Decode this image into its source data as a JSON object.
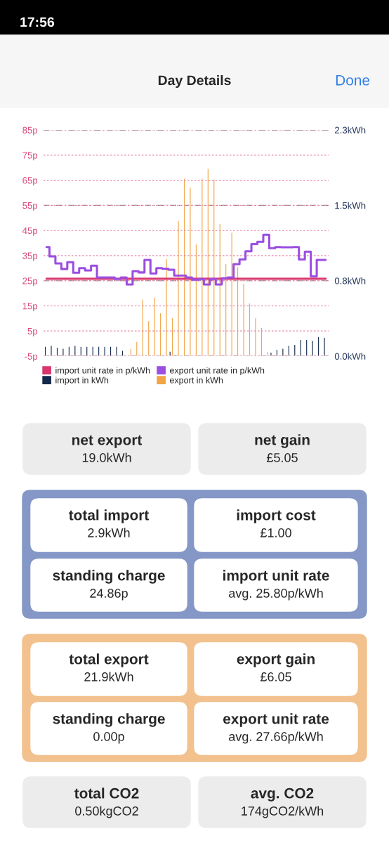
{
  "chart_data": [
    {
      "type": "bar",
      "title": "Day Details",
      "annotations": [
        "17:56",
        "Done"
      ],
      "categories": [
        null,
        null,
        null,
        null,
        null,
        null,
        null,
        null,
        null,
        null,
        null,
        null,
        null,
        null,
        null,
        null,
        null,
        null,
        null,
        null,
        null,
        null,
        null,
        null,
        null,
        null,
        null,
        null,
        null,
        null,
        null,
        null,
        null,
        null,
        null,
        null,
        null,
        null,
        null,
        null,
        null,
        null,
        null,
        null,
        null,
        null,
        null,
        null
      ],
      "ylim": [
        -5,
        85
      ],
      "yticks": [
        {
          "value": -5,
          "label": "-5p"
        },
        {
          "value": 5,
          "label": "5p"
        },
        {
          "value": 15,
          "label": "15p"
        },
        {
          "value": 25,
          "label": "25p"
        },
        {
          "value": 35,
          "label": "35p"
        },
        {
          "value": 45,
          "label": "45p"
        },
        {
          "value": 55,
          "label": "55p"
        },
        {
          "value": 65,
          "label": "65p"
        },
        {
          "value": 75,
          "label": "75p"
        },
        {
          "value": 85,
          "label": "85p"
        }
      ],
      "y2lim": [
        0,
        2.3
      ],
      "y2ticks": [
        {
          "value": 0,
          "label": "0.0kWh"
        },
        {
          "value": 0.767,
          "label": "0.8kWh"
        },
        {
          "value": 1.533,
          "label": "1.5kWh"
        },
        {
          "value": 2.3,
          "label": "2.3kWh"
        }
      ],
      "grid": true,
      "legend": "bottom",
      "series": [
        {
          "name": "import unit rate in p/kWh",
          "type": "step",
          "axis": "y",
          "color": "#d9366e",
          "values": [
            25.8,
            25.8,
            25.8,
            25.8,
            25.8,
            25.8,
            25.8,
            25.8,
            25.8,
            25.8,
            25.8,
            25.8,
            25.8,
            25.8,
            25.8,
            25.8,
            25.8,
            25.8,
            25.8,
            25.8,
            25.8,
            25.8,
            25.8,
            25.8,
            25.8,
            25.8,
            25.8,
            25.8,
            25.8,
            25.8,
            25.8,
            25.8,
            25.8,
            25.8,
            25.8,
            25.8,
            25.8,
            25.8,
            25.8,
            25.8,
            25.8,
            25.8,
            25.8,
            25.8,
            25.8,
            25.8,
            25.8,
            25.8
          ]
        },
        {
          "name": "export unit rate in p/kWh",
          "type": "step",
          "axis": "y",
          "color": "#9b4ee0",
          "values": [
            38.4,
            34.7,
            31.9,
            29.7,
            32.4,
            28.2,
            30.0,
            29.1,
            31.0,
            26.3,
            26.3,
            26.3,
            25.7,
            26.3,
            23.5,
            28.8,
            28.3,
            33.3,
            27.9,
            30.0,
            29.8,
            29.4,
            27.1,
            27.1,
            26.3,
            25.4,
            25.7,
            23.5,
            25.7,
            23.5,
            26.0,
            26.3,
            31.6,
            33.5,
            36.7,
            39.6,
            40.5,
            43.3,
            38.0,
            38.4,
            38.3,
            38.3,
            38.4,
            33.5,
            36.6,
            26.8,
            33.3,
            33.3
          ]
        },
        {
          "name": "import in kWh",
          "axis": "y2",
          "color": "#13294b",
          "values": [
            0.1,
            0.11,
            0.09,
            0.08,
            0.1,
            0.11,
            0.1,
            0.1,
            0.1,
            0.1,
            0.1,
            0.1,
            0.1,
            0.06,
            null,
            null,
            null,
            null,
            null,
            null,
            null,
            0.05,
            0.02,
            null,
            null,
            null,
            null,
            null,
            null,
            null,
            null,
            null,
            null,
            null,
            null,
            null,
            null,
            null,
            0.04,
            0.07,
            0.08,
            0.11,
            0.12,
            0.17,
            0.17,
            0.16,
            0.2,
            0.19
          ]
        },
        {
          "name": "export in kWh",
          "axis": "y2",
          "color": "#f2a446",
          "values": [
            null,
            null,
            null,
            null,
            null,
            null,
            null,
            null,
            null,
            null,
            null,
            null,
            null,
            null,
            0.08,
            0.15,
            0.58,
            0.36,
            0.6,
            0.44,
            0.99,
            0.39,
            1.38,
            1.81,
            1.72,
            1.14,
            1.81,
            1.91,
            1.8,
            1.35,
            0.94,
            1.26,
            0.91,
            0.74,
            0.54,
            0.39,
            0.29,
            0.05,
            null,
            null,
            null,
            null,
            null,
            null,
            null,
            null,
            null,
            null
          ]
        }
      ]
    },
    {
      "type": "other",
      "annotations": [
        "net export",
        "19.0kWh",
        "net gain",
        "£5.05",
        "total import",
        "2.9kWh",
        "import cost",
        "£1.00",
        "standing charge",
        "24.86p",
        "import unit rate",
        "avg. 25.80p/kWh",
        "total export",
        "21.9kWh",
        "export gain",
        "£6.05",
        "standing charge",
        "0.00p",
        "export unit rate",
        "avg. 27.66p/kWh",
        "total CO2",
        "0.50kgCO2",
        "avg. CO2",
        "174gCO2/kWh"
      ]
    }
  ]
}
